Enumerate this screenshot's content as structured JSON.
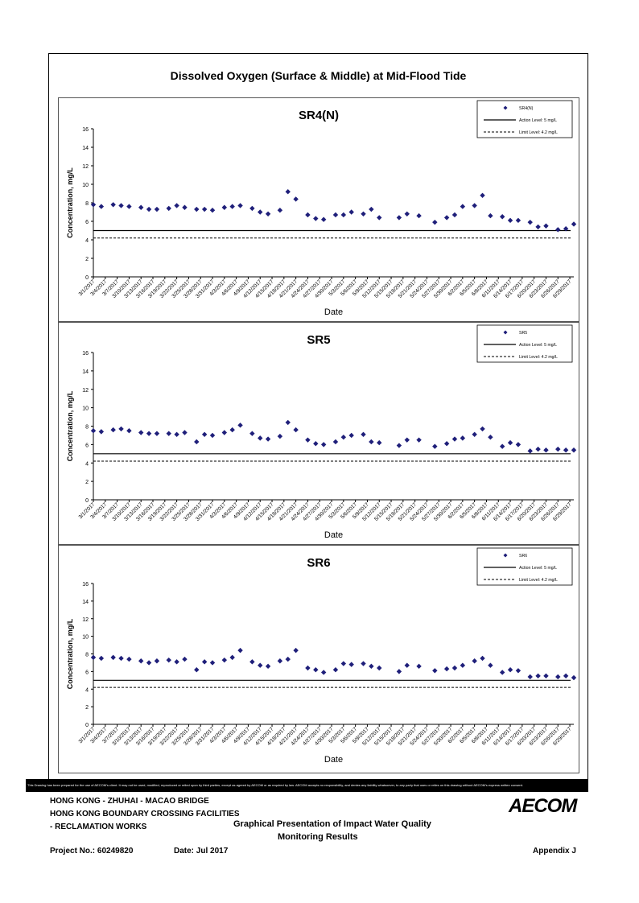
{
  "page_title": "Dissolved Oxygen (Surface & Middle) at Mid-Flood Tide",
  "chart_data": [
    {
      "type": "scatter",
      "title": "SR4(N)",
      "xlabel": "Date",
      "ylabel": "Concentration, mg/L",
      "ylim": [
        0,
        16
      ],
      "yticks": [
        "0",
        "2",
        "4",
        "6",
        "8",
        "10",
        "12",
        "14",
        "16"
      ],
      "xtick_labels": [
        "3/1/2017",
        "3/4/2017",
        "3/7/2017",
        "3/10/2017",
        "3/13/2017",
        "3/16/2017",
        "3/19/2017",
        "3/22/2017",
        "3/25/2017",
        "3/28/2017",
        "3/31/2017",
        "4/3/2017",
        "4/6/2017",
        "4/9/2017",
        "4/12/2017",
        "4/15/2017",
        "4/18/2017",
        "4/21/2017",
        "4/24/2017",
        "4/27/2017",
        "4/30/2017",
        "5/3/2017",
        "5/6/2017",
        "5/9/2017",
        "5/12/2017",
        "5/15/2017",
        "5/18/2017",
        "5/21/2017",
        "5/24/2017",
        "5/27/2017",
        "5/30/2017",
        "6/2/2017",
        "6/5/2017",
        "6/8/2017",
        "6/11/2017",
        "6/14/2017",
        "6/17/2017",
        "6/20/2017",
        "6/23/2017",
        "6/26/2017",
        "6/29/2017"
      ],
      "x": [
        "3/1/2017",
        "3/3/2017",
        "3/6/2017",
        "3/8/2017",
        "3/10/2017",
        "3/13/2017",
        "3/15/2017",
        "3/17/2017",
        "3/20/2017",
        "3/22/2017",
        "3/24/2017",
        "3/27/2017",
        "3/29/2017",
        "3/31/2017",
        "4/3/2017",
        "4/5/2017",
        "4/7/2017",
        "4/10/2017",
        "4/12/2017",
        "4/14/2017",
        "4/17/2017",
        "4/19/2017",
        "4/21/2017",
        "4/24/2017",
        "4/26/2017",
        "4/28/2017",
        "5/1/2017",
        "5/3/2017",
        "5/5/2017",
        "5/8/2017",
        "5/10/2017",
        "5/12/2017",
        "5/17/2017",
        "5/19/2017",
        "5/22/2017",
        "5/26/2017",
        "5/29/2017",
        "5/31/2017",
        "6/2/2017",
        "6/5/2017",
        "6/7/2017",
        "6/9/2017",
        "6/12/2017",
        "6/14/2017",
        "6/16/2017",
        "6/19/2017",
        "6/21/2017",
        "6/23/2017",
        "6/26/2017",
        "6/28/2017",
        "6/30/2017"
      ],
      "series": [
        {
          "name": "SR4(N)",
          "values": [
            7.8,
            7.6,
            7.8,
            7.7,
            7.6,
            7.5,
            7.3,
            7.3,
            7.4,
            7.7,
            7.5,
            7.3,
            7.3,
            7.2,
            7.5,
            7.6,
            7.7,
            7.4,
            7.0,
            6.8,
            7.2,
            9.2,
            8.4,
            6.7,
            6.3,
            6.2,
            6.7,
            6.7,
            7.0,
            6.8,
            7.3,
            6.4,
            6.4,
            6.8,
            6.6,
            5.9,
            6.4,
            6.7,
            7.6,
            7.7,
            8.8,
            6.6,
            6.5,
            6.1,
            6.1,
            5.9,
            5.4,
            5.5,
            5.1,
            5.2,
            5.7
          ]
        },
        {
          "name": "Action Level: 5 mg/L",
          "value": 5
        },
        {
          "name": "Limit Level: 4.2 mg/L",
          "value": 4.2
        }
      ]
    },
    {
      "type": "scatter",
      "title": "SR5",
      "xlabel": "Date",
      "ylabel": "Concentration, mg/L",
      "ylim": [
        0,
        16
      ],
      "yticks": [
        "0",
        "2",
        "4",
        "6",
        "8",
        "10",
        "12",
        "14",
        "16"
      ],
      "xtick_labels": [
        "3/1/2017",
        "3/4/2017",
        "3/7/2017",
        "3/10/2017",
        "3/13/2017",
        "3/16/2017",
        "3/19/2017",
        "3/22/2017",
        "3/25/2017",
        "3/28/2017",
        "3/31/2017",
        "4/3/2017",
        "4/6/2017",
        "4/9/2017",
        "4/12/2017",
        "4/15/2017",
        "4/18/2017",
        "4/21/2017",
        "4/24/2017",
        "4/27/2017",
        "4/30/2017",
        "5/3/2017",
        "5/6/2017",
        "5/9/2017",
        "5/12/2017",
        "5/15/2017",
        "5/18/2017",
        "5/21/2017",
        "5/24/2017",
        "5/27/2017",
        "5/30/2017",
        "6/2/2017",
        "6/5/2017",
        "6/8/2017",
        "6/11/2017",
        "6/14/2017",
        "6/17/2017",
        "6/20/2017",
        "6/23/2017",
        "6/26/2017",
        "6/29/2017"
      ],
      "x": [
        "3/1/2017",
        "3/3/2017",
        "3/6/2017",
        "3/8/2017",
        "3/10/2017",
        "3/13/2017",
        "3/15/2017",
        "3/17/2017",
        "3/20/2017",
        "3/22/2017",
        "3/24/2017",
        "3/27/2017",
        "3/29/2017",
        "3/31/2017",
        "4/3/2017",
        "4/5/2017",
        "4/7/2017",
        "4/10/2017",
        "4/12/2017",
        "4/14/2017",
        "4/17/2017",
        "4/19/2017",
        "4/21/2017",
        "4/24/2017",
        "4/26/2017",
        "4/28/2017",
        "5/1/2017",
        "5/3/2017",
        "5/5/2017",
        "5/8/2017",
        "5/10/2017",
        "5/12/2017",
        "5/17/2017",
        "5/19/2017",
        "5/22/2017",
        "5/26/2017",
        "5/29/2017",
        "5/31/2017",
        "6/2/2017",
        "6/5/2017",
        "6/7/2017",
        "6/9/2017",
        "6/12/2017",
        "6/14/2017",
        "6/16/2017",
        "6/19/2017",
        "6/21/2017",
        "6/23/2017",
        "6/26/2017",
        "6/28/2017",
        "6/30/2017"
      ],
      "series": [
        {
          "name": "SR5",
          "values": [
            7.5,
            7.4,
            7.6,
            7.7,
            7.5,
            7.3,
            7.2,
            7.2,
            7.2,
            7.1,
            7.3,
            6.3,
            7.1,
            7.0,
            7.3,
            7.6,
            8.1,
            7.2,
            6.7,
            6.6,
            6.9,
            8.4,
            7.6,
            6.5,
            6.1,
            6.0,
            6.3,
            6.8,
            7.0,
            7.1,
            6.3,
            6.2,
            5.9,
            6.5,
            6.5,
            5.8,
            6.1,
            6.6,
            6.7,
            7.1,
            7.7,
            6.8,
            5.8,
            6.2,
            6.0,
            5.3,
            5.5,
            5.4,
            5.5,
            5.4,
            5.4
          ]
        },
        {
          "name": "Action Level: 5 mg/L",
          "value": 5
        },
        {
          "name": "Limit Level: 4.2 mg/L",
          "value": 4.2
        }
      ]
    },
    {
      "type": "scatter",
      "title": "SR6",
      "xlabel": "Date",
      "ylabel": "Concentration, mg/L",
      "ylim": [
        0,
        16
      ],
      "yticks": [
        "0",
        "2",
        "4",
        "6",
        "8",
        "10",
        "12",
        "14",
        "16"
      ],
      "xtick_labels": [
        "3/1/2017",
        "3/4/2017",
        "3/7/2017",
        "3/10/2017",
        "3/13/2017",
        "3/16/2017",
        "3/19/2017",
        "3/22/2017",
        "3/25/2017",
        "3/28/2017",
        "3/31/2017",
        "4/3/2017",
        "4/6/2017",
        "4/9/2017",
        "4/12/2017",
        "4/15/2017",
        "4/18/2017",
        "4/21/2017",
        "4/24/2017",
        "4/27/2017",
        "4/30/2017",
        "5/3/2017",
        "5/6/2017",
        "5/9/2017",
        "5/12/2017",
        "5/15/2017",
        "5/18/2017",
        "5/21/2017",
        "5/24/2017",
        "5/27/2017",
        "5/30/2017",
        "6/2/2017",
        "6/5/2017",
        "6/8/2017",
        "6/11/2017",
        "6/14/2017",
        "6/17/2017",
        "6/20/2017",
        "6/23/2017",
        "6/26/2017",
        "6/29/2017"
      ],
      "x": [
        "3/1/2017",
        "3/3/2017",
        "3/6/2017",
        "3/8/2017",
        "3/10/2017",
        "3/13/2017",
        "3/15/2017",
        "3/17/2017",
        "3/20/2017",
        "3/22/2017",
        "3/24/2017",
        "3/27/2017",
        "3/29/2017",
        "3/31/2017",
        "4/3/2017",
        "4/5/2017",
        "4/7/2017",
        "4/10/2017",
        "4/12/2017",
        "4/14/2017",
        "4/17/2017",
        "4/19/2017",
        "4/21/2017",
        "4/24/2017",
        "4/26/2017",
        "4/28/2017",
        "5/1/2017",
        "5/3/2017",
        "5/5/2017",
        "5/8/2017",
        "5/10/2017",
        "5/12/2017",
        "5/17/2017",
        "5/19/2017",
        "5/22/2017",
        "5/26/2017",
        "5/29/2017",
        "5/31/2017",
        "6/2/2017",
        "6/5/2017",
        "6/7/2017",
        "6/9/2017",
        "6/12/2017",
        "6/14/2017",
        "6/16/2017",
        "6/19/2017",
        "6/21/2017",
        "6/23/2017",
        "6/26/2017",
        "6/28/2017",
        "6/30/2017"
      ],
      "series": [
        {
          "name": "SR6",
          "values": [
            7.6,
            7.5,
            7.6,
            7.5,
            7.4,
            7.2,
            7.0,
            7.2,
            7.3,
            7.1,
            7.4,
            6.2,
            7.1,
            7.0,
            7.3,
            7.6,
            8.4,
            7.1,
            6.7,
            6.6,
            7.2,
            7.4,
            8.4,
            6.4,
            6.2,
            5.9,
            6.2,
            6.9,
            6.8,
            6.9,
            6.6,
            6.4,
            6.0,
            6.7,
            6.6,
            6.1,
            6.3,
            6.4,
            6.7,
            7.2,
            7.5,
            6.7,
            5.9,
            6.2,
            6.1,
            5.4,
            5.5,
            5.5,
            5.4,
            5.5,
            5.3
          ]
        },
        {
          "name": "Action Level: 5 mg/L",
          "value": 5
        },
        {
          "name": "Limit Level: 4.2 mg/L",
          "value": 4.2
        }
      ]
    }
  ],
  "colors": {
    "marker": "#1f1f7a",
    "line": "#000000"
  },
  "disclaimer": "This Drawing has been prepared for the use of AECOM's client. It may not be used, modified, reproduced or relied upon by third parties, except as agreed by AECOM or as required by law. AECOM accepts no responsibility, and denies any liability whatsoever, to any party that uses or relies on this drawing without AECOM's express written consent.",
  "footer": {
    "project_line1": "HONG KONG - ZHUHAI - MACAO BRIDGE",
    "project_line2": "HONG KONG BOUNDARY CROSSING FACILITIES",
    "project_line3": "- RECLAMATION WORKS",
    "drawing_title_line1": "Graphical Presentation of Impact Water Quality",
    "drawing_title_line2": "Monitoring Results",
    "project_no": "Project No.: 60249820",
    "date": "Date: Jul 2017",
    "appendix": "Appendix J",
    "logo": "AECOM"
  }
}
